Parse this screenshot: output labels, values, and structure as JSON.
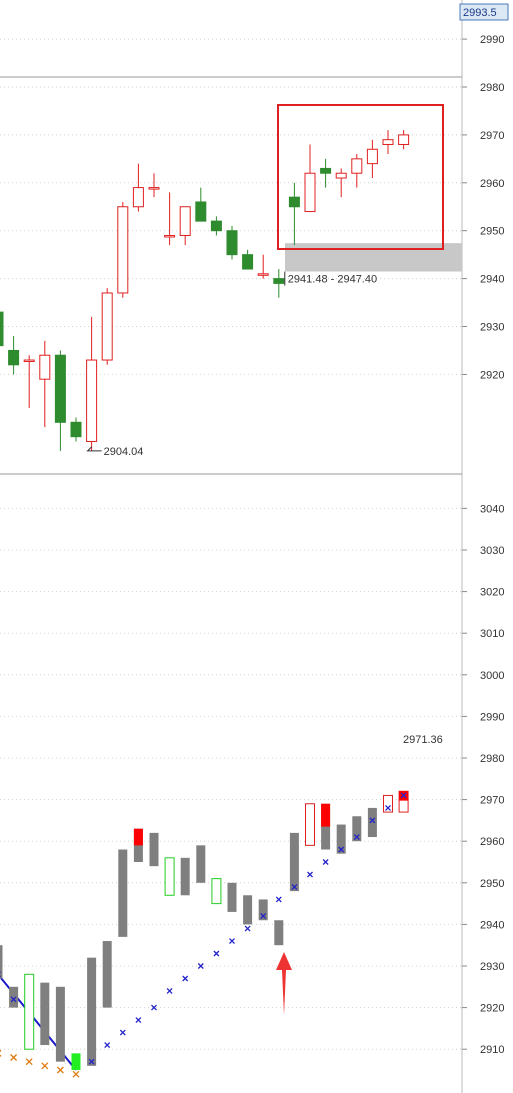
{
  "header": {
    "price_label": "2993.5"
  },
  "colors": {
    "up": "#e02020",
    "down": "#2e8b2e",
    "wick_up": "#e02020",
    "wick_down": "#2e8b2e",
    "gray_bar": "#7f7f7f",
    "red_fill": "#ff0000",
    "green_outline": "#22cc22",
    "bright_green": "#22ee22",
    "blue_marker": "#2222cc",
    "orange_marker": "#e07a10",
    "blue_line": "#1a1acc",
    "highlight_box": "#e02020",
    "gap_zone": "#c8c8c8",
    "arrow": "#ee3333",
    "grid": "#cfcfcf",
    "axis_text": "#333333"
  },
  "chart_data": [
    {
      "type": "candlestick",
      "y_ticks": [
        2920,
        2930,
        2940,
        2950,
        2960,
        2970,
        2980,
        2990
      ],
      "ylim": [
        2906,
        2999
      ],
      "annotations": {
        "low_label": "2904.04",
        "gap_label": "2941.48 - 2947.40",
        "gap_range": [
          2941.48,
          2947.4
        ]
      },
      "candles": [
        {
          "o": 2933,
          "h": 2937,
          "l": 2919,
          "c": 2926
        },
        {
          "o": 2925,
          "h": 2928,
          "l": 2920,
          "c": 2922
        },
        {
          "o": 2923,
          "h": 2924,
          "l": 2913,
          "c": 2923
        },
        {
          "o": 2919,
          "h": 2927,
          "l": 2909,
          "c": 2924
        },
        {
          "o": 2924,
          "h": 2925,
          "l": 2904,
          "c": 2910
        },
        {
          "o": 2910,
          "h": 2911,
          "l": 2906,
          "c": 2907
        },
        {
          "o": 2906,
          "h": 2932,
          "l": 2904.04,
          "c": 2923
        },
        {
          "o": 2923,
          "h": 2938,
          "l": 2922,
          "c": 2937
        },
        {
          "o": 2937,
          "h": 2956,
          "l": 2936,
          "c": 2955
        },
        {
          "o": 2955,
          "h": 2964,
          "l": 2954,
          "c": 2959
        },
        {
          "o": 2959,
          "h": 2962,
          "l": 2957,
          "c": 2959
        },
        {
          "o": 2949,
          "h": 2958,
          "l": 2947,
          "c": 2949
        },
        {
          "o": 2949,
          "h": 2955,
          "l": 2947,
          "c": 2955
        },
        {
          "o": 2956,
          "h": 2959,
          "l": 2952,
          "c": 2952
        },
        {
          "o": 2952,
          "h": 2953,
          "l": 2949,
          "c": 2950
        },
        {
          "o": 2950,
          "h": 2951,
          "l": 2944,
          "c": 2945
        },
        {
          "o": 2945,
          "h": 2946,
          "l": 2942,
          "c": 2942
        },
        {
          "o": 2941,
          "h": 2945,
          "l": 2940,
          "c": 2941
        },
        {
          "o": 2940,
          "h": 2942,
          "l": 2936,
          "c": 2939
        },
        {
          "o": 2957,
          "h": 2960,
          "l": 2947,
          "c": 2955
        },
        {
          "o": 2954,
          "h": 2968,
          "l": 2954,
          "c": 2962
        },
        {
          "o": 2963,
          "h": 2965,
          "l": 2959,
          "c": 2962
        },
        {
          "o": 2961,
          "h": 2963,
          "l": 2957,
          "c": 2962
        },
        {
          "o": 2962,
          "h": 2966,
          "l": 2959,
          "c": 2965
        },
        {
          "o": 2964,
          "h": 2969,
          "l": 2961,
          "c": 2967
        },
        {
          "o": 2968,
          "h": 2971,
          "l": 2966,
          "c": 2969
        },
        {
          "o": 2968,
          "h": 2971,
          "l": 2967,
          "c": 2970
        }
      ]
    },
    {
      "type": "bar",
      "y_ticks": [
        2910,
        2920,
        2930,
        2940,
        2950,
        2960,
        2970,
        2980,
        2990,
        3000,
        3010,
        3020,
        3030,
        3040
      ],
      "ylim": [
        2900,
        3050
      ],
      "annotations": {
        "price_label": "2971.36"
      },
      "bars": [
        {
          "lo": 2927,
          "hi": 2935,
          "s": "gray"
        },
        {
          "lo": 2920,
          "hi": 2925,
          "s": "gray"
        },
        {
          "lo": 2910,
          "hi": 2928,
          "s": "green_outline"
        },
        {
          "lo": 2911,
          "hi": 2926,
          "s": "gray"
        },
        {
          "lo": 2907,
          "hi": 2925,
          "s": "gray"
        },
        {
          "lo": 2905,
          "hi": 2909,
          "s": "bright_green"
        },
        {
          "lo": 2906,
          "hi": 2932,
          "s": "gray"
        },
        {
          "lo": 2920,
          "hi": 2936,
          "s": "gray"
        },
        {
          "lo": 2937,
          "hi": 2958,
          "s": "gray"
        },
        {
          "lo": 2955,
          "hi": 2963,
          "s": "gray_red_top"
        },
        {
          "lo": 2954,
          "hi": 2962,
          "s": "gray"
        },
        {
          "lo": 2947,
          "hi": 2956,
          "s": "green_outline"
        },
        {
          "lo": 2947,
          "hi": 2956,
          "s": "gray"
        },
        {
          "lo": 2950,
          "hi": 2959,
          "s": "gray"
        },
        {
          "lo": 2945,
          "hi": 2951,
          "s": "green_outline"
        },
        {
          "lo": 2943,
          "hi": 2950,
          "s": "gray"
        },
        {
          "lo": 2940,
          "hi": 2947,
          "s": "gray"
        },
        {
          "lo": 2941,
          "hi": 2946,
          "s": "gray"
        },
        {
          "lo": 2935,
          "hi": 2941,
          "s": "gray"
        },
        {
          "lo": 2948,
          "hi": 2962,
          "s": "gray"
        },
        {
          "lo": 2959,
          "hi": 2969,
          "s": "red_outline"
        },
        {
          "lo": 2958,
          "hi": 2969,
          "s": "gray_red_top"
        },
        {
          "lo": 2957,
          "hi": 2964,
          "s": "gray"
        },
        {
          "lo": 2960,
          "hi": 2966,
          "s": "gray"
        },
        {
          "lo": 2961,
          "hi": 2968,
          "s": "gray"
        },
        {
          "lo": 2967,
          "hi": 2971,
          "s": "red_outline"
        },
        {
          "lo": 2967,
          "hi": 2972,
          "s": "red_outline_red_top"
        }
      ],
      "markers_orange": [
        {
          "i": 0,
          "v": 2909
        },
        {
          "i": 1,
          "v": 2908
        },
        {
          "i": 2,
          "v": 2907
        },
        {
          "i": 3,
          "v": 2906
        },
        {
          "i": 4,
          "v": 2905
        },
        {
          "i": 5,
          "v": 2904
        }
      ],
      "markers_blue": [
        {
          "i": 0,
          "v": 2928
        },
        {
          "i": 1,
          "v": 2922
        },
        {
          "i": 6,
          "v": 2907
        },
        {
          "i": 7,
          "v": 2911
        },
        {
          "i": 8,
          "v": 2914
        },
        {
          "i": 9,
          "v": 2917
        },
        {
          "i": 10,
          "v": 2920
        },
        {
          "i": 11,
          "v": 2924
        },
        {
          "i": 12,
          "v": 2927
        },
        {
          "i": 13,
          "v": 2930
        },
        {
          "i": 14,
          "v": 2933
        },
        {
          "i": 15,
          "v": 2936
        },
        {
          "i": 16,
          "v": 2939
        },
        {
          "i": 17,
          "v": 2942
        },
        {
          "i": 18,
          "v": 2946
        },
        {
          "i": 19,
          "v": 2949
        },
        {
          "i": 20,
          "v": 2952
        },
        {
          "i": 21,
          "v": 2955
        },
        {
          "i": 22,
          "v": 2958
        },
        {
          "i": 23,
          "v": 2961
        },
        {
          "i": 24,
          "v": 2965
        },
        {
          "i": 25,
          "v": 2968
        },
        {
          "i": 26,
          "v": 2971
        }
      ],
      "trend_line": [
        {
          "i": 0,
          "v": 2928
        },
        {
          "i": 5,
          "v": 2905
        }
      ]
    }
  ]
}
